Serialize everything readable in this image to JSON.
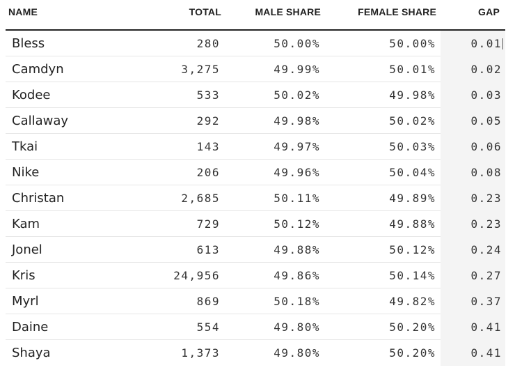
{
  "headers": {
    "name": "NAME",
    "total": "TOTAL",
    "male_share": "MALE SHARE",
    "female_share": "FEMALE SHARE",
    "gap": "GAP"
  },
  "rows": [
    {
      "name": "Bless",
      "total": "280",
      "male": "50.00%",
      "female": "50.00%",
      "gap": "0.01"
    },
    {
      "name": "Camdyn",
      "total": "3,275",
      "male": "49.99%",
      "female": "50.01%",
      "gap": "0.02"
    },
    {
      "name": "Kodee",
      "total": "533",
      "male": "50.02%",
      "female": "49.98%",
      "gap": "0.03"
    },
    {
      "name": "Callaway",
      "total": "292",
      "male": "49.98%",
      "female": "50.02%",
      "gap": "0.05"
    },
    {
      "name": "Tkai",
      "total": "143",
      "male": "49.97%",
      "female": "50.03%",
      "gap": "0.06"
    },
    {
      "name": "Nike",
      "total": "206",
      "male": "49.96%",
      "female": "50.04%",
      "gap": "0.08"
    },
    {
      "name": "Christan",
      "total": "2,685",
      "male": "50.11%",
      "female": "49.89%",
      "gap": "0.23"
    },
    {
      "name": "Kam",
      "total": "729",
      "male": "50.12%",
      "female": "49.88%",
      "gap": "0.23"
    },
    {
      "name": "Jonel",
      "total": "613",
      "male": "49.88%",
      "female": "50.12%",
      "gap": "0.24"
    },
    {
      "name": "Kris",
      "total": "24,956",
      "male": "49.86%",
      "female": "50.14%",
      "gap": "0.27"
    },
    {
      "name": "Myrl",
      "total": "869",
      "male": "50.18%",
      "female": "49.82%",
      "gap": "0.37"
    },
    {
      "name": "Daine",
      "total": "554",
      "male": "49.80%",
      "female": "50.20%",
      "gap": "0.41"
    },
    {
      "name": "Shaya",
      "total": "1,373",
      "male": "49.80%",
      "female": "50.20%",
      "gap": "0.41"
    }
  ]
}
